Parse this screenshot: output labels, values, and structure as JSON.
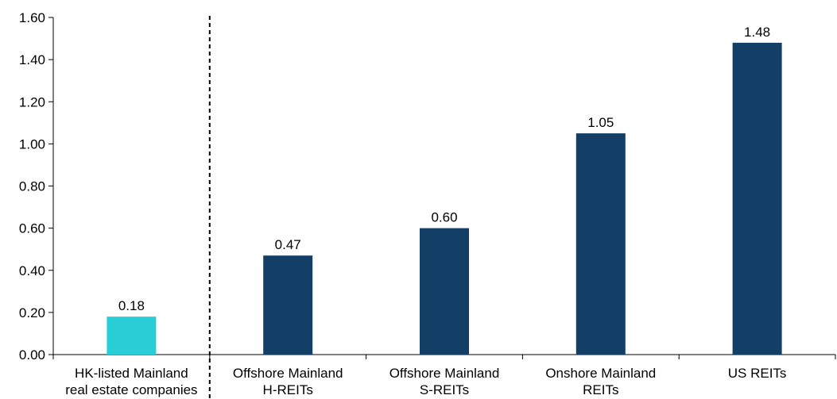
{
  "chart_data": {
    "type": "bar",
    "title": "",
    "xlabel": "",
    "ylabel": "",
    "ylim": [
      0,
      1.6
    ],
    "yticks": [
      "0.00",
      "0.20",
      "0.40",
      "0.60",
      "0.80",
      "1.00",
      "1.20",
      "1.40",
      "1.60"
    ],
    "grid": false,
    "legend": "none",
    "categories": [
      [
        "HK-listed Mainland",
        "real estate companies"
      ],
      [
        "Offshore Mainland",
        "H-REITs"
      ],
      [
        "Offshore Mainland",
        "S-REITs"
      ],
      [
        "Onshore Mainland",
        "REITs"
      ],
      [
        "US REITs"
      ]
    ],
    "values": [
      0.18,
      0.47,
      0.6,
      1.05,
      1.48
    ],
    "value_labels": [
      "0.18",
      "0.47",
      "0.60",
      "1.05",
      "1.48"
    ],
    "colors": [
      "#29CDD5",
      "#133E65",
      "#133E65",
      "#133E65",
      "#133E65"
    ],
    "separator_after_category": 1,
    "separator_style": "dashed"
  }
}
